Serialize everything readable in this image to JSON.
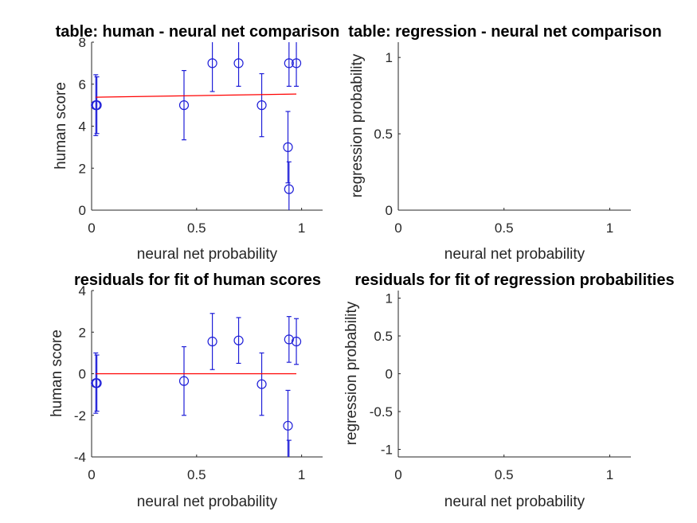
{
  "chart_data": [
    {
      "type": "scatter",
      "title": "table: human - neural net comparison",
      "xlabel": "neural net probability",
      "ylabel": "human score",
      "xlim": [
        0,
        1.1
      ],
      "ylim": [
        0,
        8
      ],
      "xticks": [
        0,
        0.5,
        1
      ],
      "xtick_labels": [
        "0",
        "0.5",
        "1"
      ],
      "yticks": [
        0,
        2,
        4,
        6,
        8
      ],
      "ytick_labels": [
        "0",
        "2",
        "4",
        "6",
        "8"
      ],
      "series": [
        {
          "x": [
            0.02,
            0.025,
            0.44,
            0.575,
            0.7,
            0.81,
            0.935,
            0.94,
            0.94,
            0.975
          ],
          "y": [
            5,
            5,
            5,
            7,
            7,
            5,
            3,
            1,
            7,
            7
          ],
          "err": [
            1.45,
            1.35,
            1.65,
            1.35,
            1.1,
            1.5,
            1.7,
            1.3,
            1.1,
            1.1
          ],
          "color": "#1f1fd8"
        }
      ],
      "fit_line": {
        "x": [
          0.02,
          0.975
        ],
        "y": [
          5.38,
          5.53
        ],
        "color": "#ff0000"
      }
    },
    {
      "type": "scatter",
      "title": "table: regression - neural net comparison",
      "xlabel": "neural net probability",
      "ylabel": "regression probability",
      "xlim": [
        0,
        1.1
      ],
      "ylim": [
        0,
        1.1
      ],
      "xticks": [
        0,
        0.5,
        1
      ],
      "xtick_labels": [
        "0",
        "0.5",
        "1"
      ],
      "yticks": [
        0,
        0.5,
        1
      ],
      "ytick_labels": [
        "0",
        "0.5",
        "1"
      ],
      "series": []
    },
    {
      "type": "scatter",
      "title": "residuals for fit of human scores",
      "xlabel": "neural net probability",
      "ylabel": "human score",
      "xlim": [
        0,
        1.1
      ],
      "ylim": [
        -4,
        4
      ],
      "xticks": [
        0,
        0.5,
        1
      ],
      "xtick_labels": [
        "0",
        "0.5",
        "1"
      ],
      "yticks": [
        -4,
        -2,
        0,
        2,
        4
      ],
      "ytick_labels": [
        "-4",
        "-2",
        "0",
        "2",
        "4"
      ],
      "series": [
        {
          "x": [
            0.02,
            0.025,
            0.44,
            0.575,
            0.7,
            0.81,
            0.935,
            0.94,
            0.94,
            0.975
          ],
          "y": [
            -0.45,
            -0.45,
            -0.35,
            1.55,
            1.6,
            -0.5,
            -2.5,
            -4.5,
            1.65,
            1.55
          ],
          "err": [
            1.45,
            1.35,
            1.65,
            1.35,
            1.1,
            1.5,
            1.7,
            1.3,
            1.1,
            1.1
          ],
          "color": "#1f1fd8"
        }
      ],
      "fit_line": {
        "x": [
          0.02,
          0.975
        ],
        "y": [
          0,
          0
        ],
        "color": "#ff0000"
      }
    },
    {
      "type": "scatter",
      "title": "residuals for fit of regression probabilities",
      "xlabel": "neural net probability",
      "ylabel": "regression probability",
      "xlim": [
        0,
        1.1
      ],
      "ylim": [
        -1.1,
        1.1
      ],
      "xticks": [
        0,
        0.5,
        1
      ],
      "xtick_labels": [
        "0",
        "0.5",
        "1"
      ],
      "yticks": [
        -1,
        -0.5,
        0,
        0.5,
        1
      ],
      "ytick_labels": [
        "-1",
        "-0.5",
        "0",
        "0.5",
        "1"
      ],
      "series": []
    }
  ]
}
